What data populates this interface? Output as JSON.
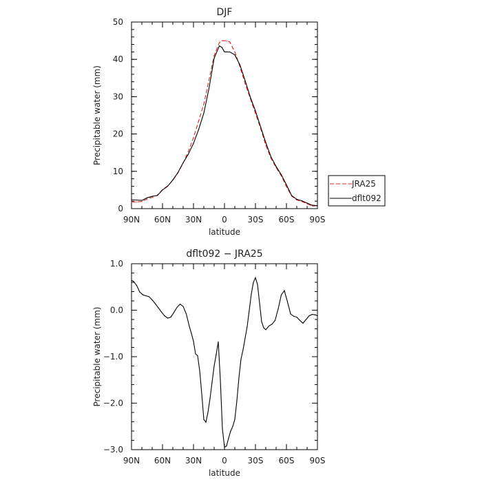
{
  "chart_data": [
    {
      "type": "line",
      "title": "DJF",
      "xlabel": "latitude",
      "ylabel": "Precipitable water  (mm)",
      "xticks": [
        {
          "v": 90,
          "label": "90N"
        },
        {
          "v": 60,
          "label": "60N"
        },
        {
          "v": 30,
          "label": "30N"
        },
        {
          "v": 0,
          "label": "0"
        },
        {
          "v": -30,
          "label": "30S"
        },
        {
          "v": -60,
          "label": "60S"
        },
        {
          "v": -90,
          "label": "90S"
        }
      ],
      "xlim": [
        90,
        -90
      ],
      "ylim": [
        0,
        50
      ],
      "yticks": [
        {
          "v": 0,
          "label": "0"
        },
        {
          "v": 10,
          "label": "10"
        },
        {
          "v": 20,
          "label": "20"
        },
        {
          "v": 30,
          "label": "30"
        },
        {
          "v": 40,
          "label": "40"
        },
        {
          "v": 50,
          "label": "50"
        }
      ],
      "legend": {
        "position": "right"
      },
      "series": [
        {
          "name": "JRA25",
          "color": "#e02020",
          "dash": true,
          "x": [
            90,
            85,
            80,
            75,
            70,
            65,
            60,
            55,
            50,
            45,
            40,
            35,
            30,
            25,
            20,
            15,
            10,
            5,
            2.5,
            0,
            -2.5,
            -5,
            -10,
            -15,
            -20,
            -25,
            -30,
            -35,
            -40,
            -45,
            -50,
            -55,
            -60,
            -65,
            -70,
            -75,
            -80,
            -85,
            -90
          ],
          "values": [
            1.8,
            1.8,
            1.9,
            2.6,
            3.0,
            3.6,
            5.1,
            6.1,
            7.6,
            9.6,
            12.2,
            15.3,
            19.0,
            23.5,
            28.0,
            34.5,
            41.0,
            44.5,
            45.0,
            45.0,
            44.9,
            44.7,
            42.0,
            38.0,
            33.5,
            29.5,
            25.5,
            21.5,
            17.0,
            13.5,
            11.0,
            8.8,
            5.9,
            3.4,
            2.3,
            1.9,
            1.3,
            0.7,
            0.8
          ]
        },
        {
          "name": "dflt092",
          "color": "#000000",
          "dash": false,
          "x": [
            90,
            85,
            80,
            75,
            70,
            65,
            60,
            55,
            50,
            45,
            40,
            35,
            30,
            25,
            20,
            15,
            10,
            5,
            2.5,
            0,
            -2.5,
            -5,
            -10,
            -15,
            -20,
            -25,
            -30,
            -35,
            -40,
            -45,
            -50,
            -55,
            -60,
            -65,
            -70,
            -75,
            -80,
            -85,
            -90
          ],
          "values": [
            2.4,
            2.3,
            2.2,
            2.9,
            3.3,
            3.5,
            5.0,
            6.0,
            7.7,
            9.7,
            12.3,
            14.6,
            17.5,
            21.2,
            25.6,
            32.2,
            40.3,
            43.6,
            43.2,
            42.0,
            42.0,
            42.0,
            41.2,
            38.5,
            34.3,
            29.9,
            26.2,
            21.9,
            17.7,
            13.9,
            11.3,
            9.1,
            6.4,
            3.5,
            2.5,
            2.1,
            1.5,
            0.9,
            0.8
          ]
        }
      ]
    },
    {
      "type": "line",
      "title": "dflt092 − JRA25",
      "xlabel": "latitude",
      "ylabel": "Precipitable water  (mm)",
      "xticks": [
        {
          "v": 90,
          "label": "90N"
        },
        {
          "v": 60,
          "label": "60N"
        },
        {
          "v": 30,
          "label": "30N"
        },
        {
          "v": 0,
          "label": "0"
        },
        {
          "v": -30,
          "label": "30S"
        },
        {
          "v": -60,
          "label": "60S"
        },
        {
          "v": -90,
          "label": "90S"
        }
      ],
      "xlim": [
        90,
        -90
      ],
      "ylim": [
        -3.0,
        1.0
      ],
      "yticks": [
        {
          "v": 1.0,
          "label": "1.0"
        },
        {
          "v": 0.0,
          "label": "0.0"
        },
        {
          "v": -1.0,
          "label": "−1.0"
        },
        {
          "v": -2.0,
          "label": "−2.0"
        },
        {
          "v": -3.0,
          "label": "−3.0"
        }
      ],
      "series": [
        {
          "color": "#000000",
          "dash": false,
          "x": [
            90,
            88,
            85,
            82,
            79,
            76,
            73,
            70,
            67,
            64,
            61,
            58,
            55,
            52,
            49,
            46,
            43,
            40,
            37,
            34,
            32,
            30,
            28,
            26,
            24,
            22,
            20,
            18,
            16,
            14,
            12,
            10,
            8,
            6,
            4,
            2,
            0,
            -2,
            -4,
            -6,
            -8,
            -10,
            -12,
            -14,
            -16,
            -18,
            -20,
            -22,
            -24,
            -26,
            -28,
            -30,
            -32,
            -34,
            -36,
            -38,
            -40,
            -43,
            -46,
            -49,
            -52,
            -55,
            -58,
            -61,
            -64,
            -67,
            -70,
            -73,
            -76,
            -79,
            -82,
            -85,
            -88,
            -90
          ],
          "values": [
            0.64,
            0.62,
            0.53,
            0.39,
            0.33,
            0.31,
            0.29,
            0.22,
            0.14,
            0.05,
            -0.04,
            -0.12,
            -0.17,
            -0.15,
            -0.05,
            0.06,
            0.13,
            0.08,
            -0.08,
            -0.35,
            -0.5,
            -0.67,
            -0.94,
            -0.98,
            -1.3,
            -1.8,
            -2.35,
            -2.41,
            -2.2,
            -1.9,
            -1.55,
            -1.2,
            -0.95,
            -0.68,
            -1.5,
            -2.55,
            -2.95,
            -2.92,
            -2.75,
            -2.6,
            -2.5,
            -2.35,
            -1.95,
            -1.45,
            -1.05,
            -0.85,
            -0.6,
            -0.35,
            0.0,
            0.35,
            0.6,
            0.7,
            0.55,
            0.15,
            -0.25,
            -0.38,
            -0.42,
            -0.34,
            -0.3,
            -0.22,
            0.03,
            0.33,
            0.42,
            0.18,
            -0.08,
            -0.13,
            -0.15,
            -0.22,
            -0.28,
            -0.2,
            -0.12,
            -0.09,
            -0.1,
            -0.12
          ]
        }
      ]
    }
  ]
}
